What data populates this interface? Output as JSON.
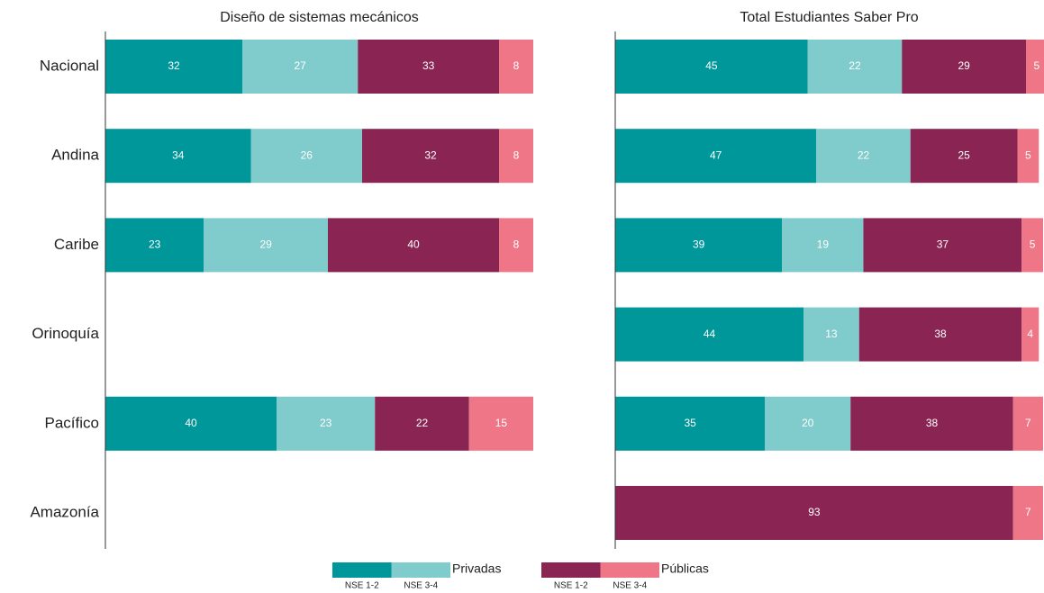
{
  "chart_data": [
    {
      "type": "bar",
      "title": "Diseño de sistemas mecánicos",
      "categories": [
        "Nacional",
        "Andina",
        "Caribe",
        "Orinoquía",
        "Pacífico",
        "Amazonía"
      ],
      "xlim": [
        0,
        100
      ],
      "series": [
        {
          "color": "#00979a",
          "values": [
            32,
            34,
            23,
            null,
            40,
            null
          ]
        },
        {
          "color": "#80cbcb",
          "values": [
            27,
            26,
            29,
            null,
            23,
            null
          ]
        },
        {
          "color": "#8a2452",
          "values": [
            33,
            32,
            40,
            null,
            22,
            null
          ]
        },
        {
          "color": "#ef7686",
          "values": [
            8,
            8,
            8,
            null,
            15,
            null
          ]
        }
      ]
    },
    {
      "type": "bar",
      "title": "Total Estudiantes Saber Pro",
      "categories": [
        "Nacional",
        "Andina",
        "Caribe",
        "Orinoquía",
        "Pacífico",
        "Amazonía"
      ],
      "xlim": [
        0,
        100
      ],
      "series": [
        {
          "color": "#00979a",
          "values": [
            45,
            47,
            39,
            44,
            35,
            0
          ]
        },
        {
          "color": "#80cbcb",
          "values": [
            22,
            22,
            19,
            13,
            20,
            0
          ]
        },
        {
          "color": "#8a2452",
          "values": [
            29,
            25,
            37,
            38,
            38,
            93
          ]
        },
        {
          "color": "#ef7686",
          "values": [
            5,
            5,
            5,
            4,
            7,
            7
          ]
        }
      ]
    }
  ],
  "legend": [
    {
      "label": "Privadas",
      "items": [
        {
          "name": "NSE 1-2",
          "color": "#00979a"
        },
        {
          "name": "NSE 3-4",
          "color": "#80cbcb"
        }
      ]
    },
    {
      "label": "Públicas",
      "items": [
        {
          "name": "NSE 1-2",
          "color": "#8a2452"
        },
        {
          "name": "NSE 3-4",
          "color": "#ef7686"
        }
      ]
    }
  ]
}
